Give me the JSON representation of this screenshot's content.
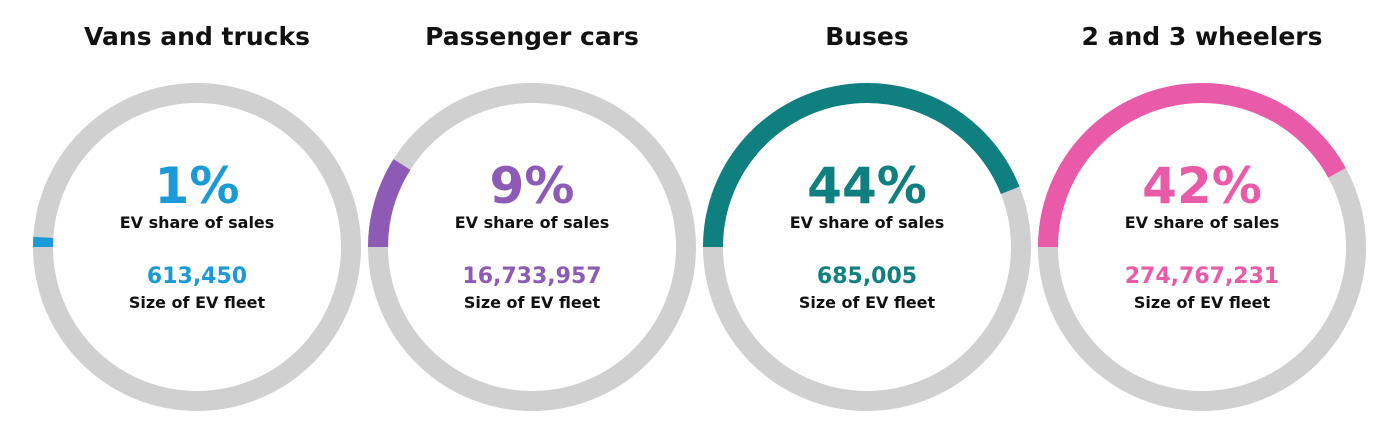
{
  "chart_data": {
    "type": "donut",
    "track_color": "#d0d0d0",
    "panels": [
      {
        "title": "Vans and trucks",
        "share_pct": 1,
        "share_text": "1%",
        "share_label": "EV share of sales",
        "fleet_size": 613450,
        "fleet_text": "613,450",
        "fleet_label": "Size of EV fleet",
        "color": "#1a9ad6"
      },
      {
        "title": "Passenger cars",
        "share_pct": 9,
        "share_text": "9%",
        "share_label": "EV share of sales",
        "fleet_size": 16733957,
        "fleet_text": "16,733,957",
        "fleet_label": "Size of EV fleet",
        "color": "#8d5bb5"
      },
      {
        "title": "Buses",
        "share_pct": 44,
        "share_text": "44%",
        "share_label": "EV share of sales",
        "fleet_size": 685005,
        "fleet_text": "685,005",
        "fleet_label": "Size of EV fleet",
        "color": "#0f7f7f"
      },
      {
        "title": "2 and 3 wheelers",
        "share_pct": 42,
        "share_text": "42%",
        "share_label": "EV share of sales",
        "fleet_size": 274767231,
        "fleet_text": "274,767,231",
        "fleet_label": "Size of EV fleet",
        "color": "#e95ba8"
      }
    ]
  }
}
